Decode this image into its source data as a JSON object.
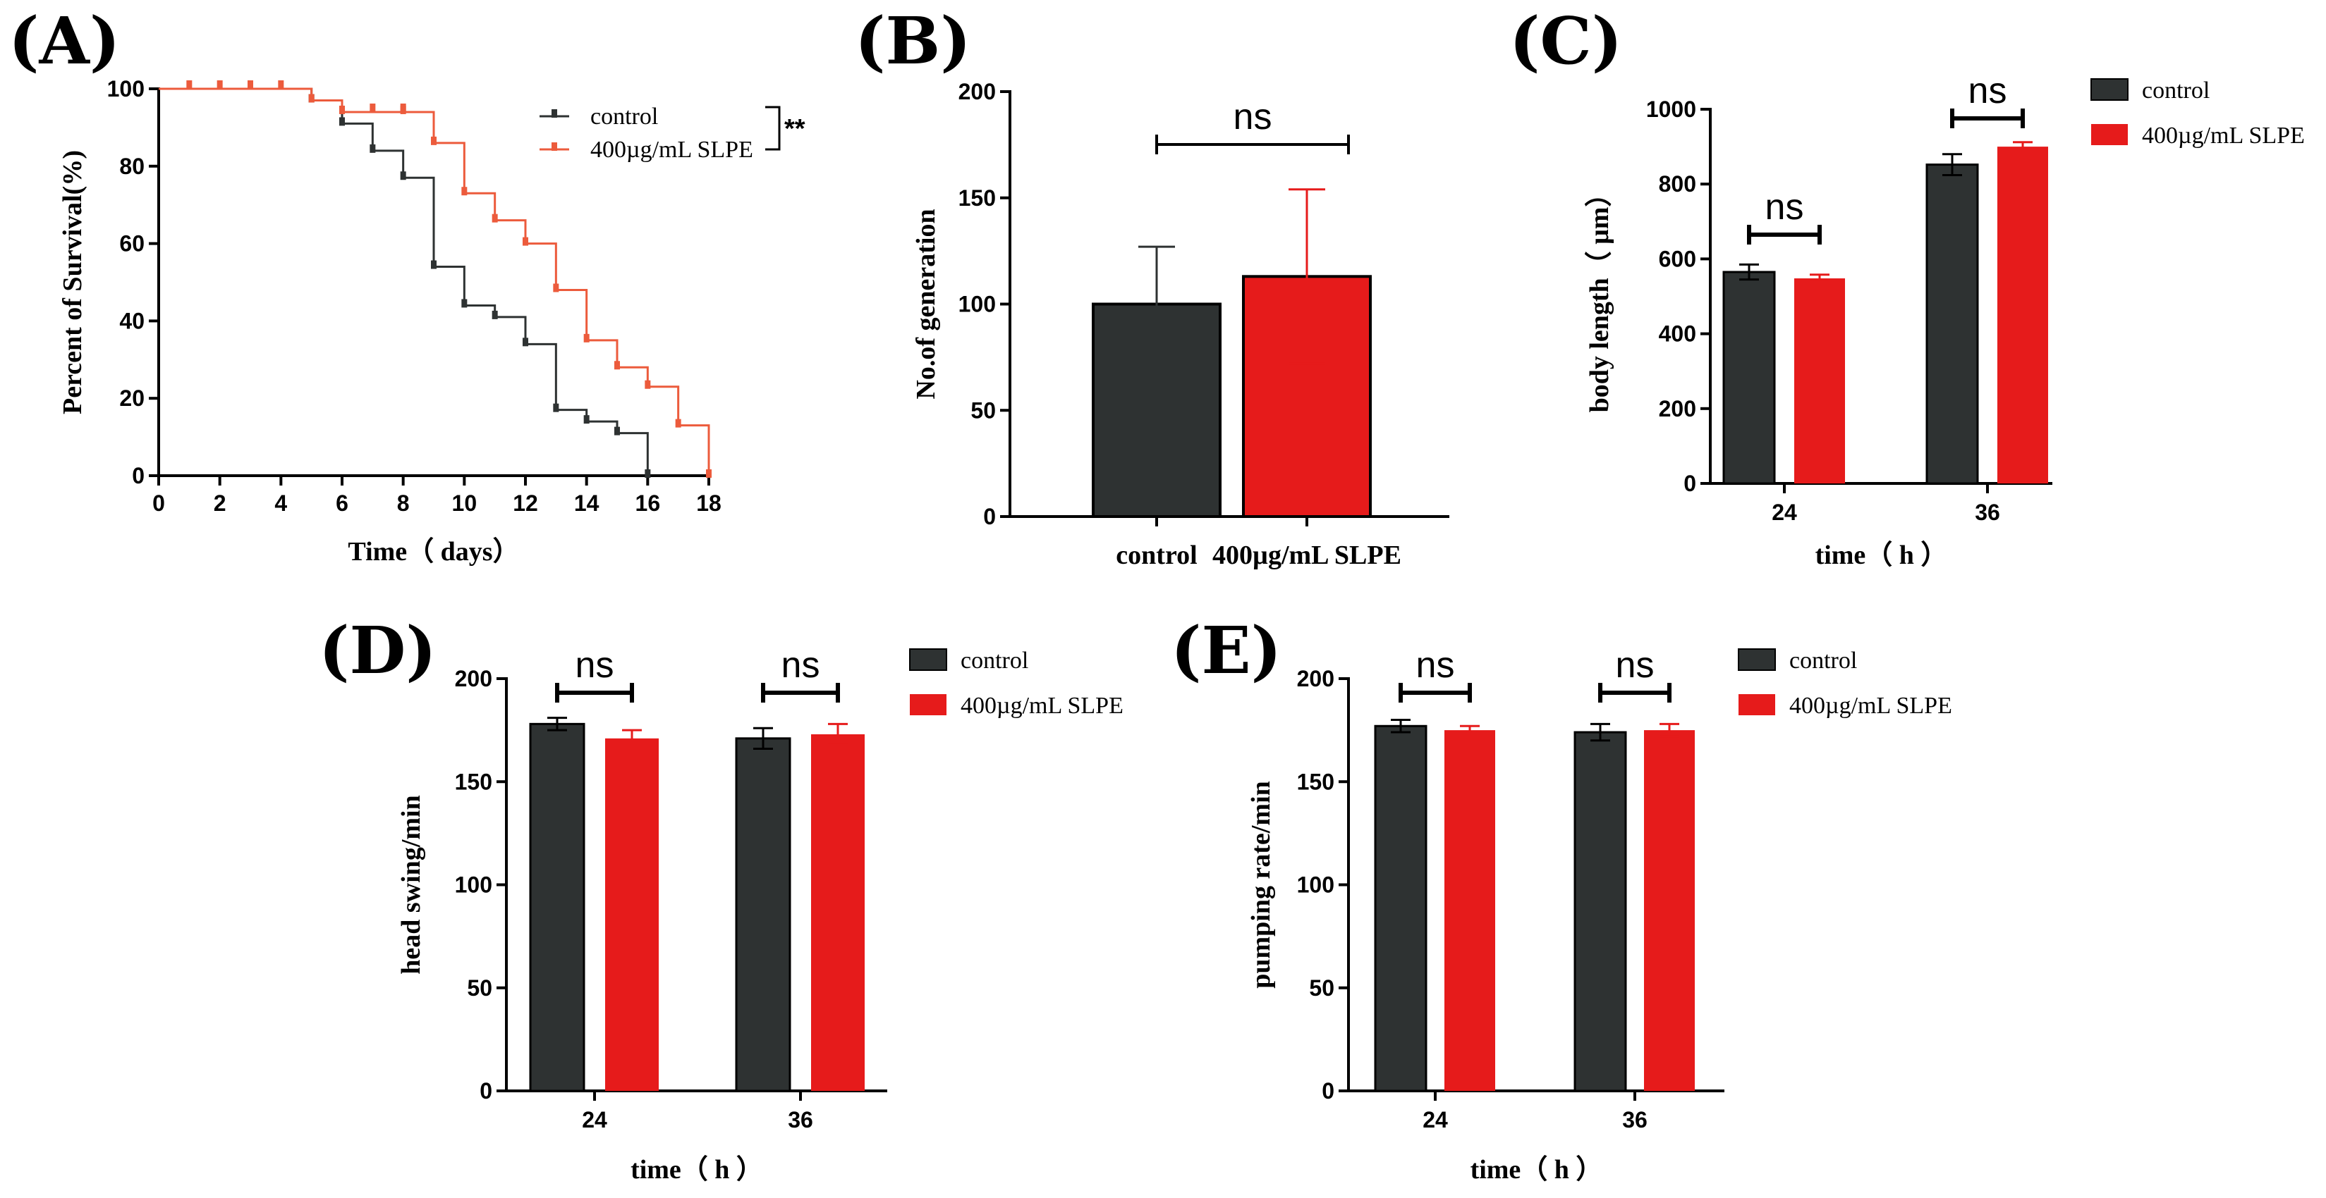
{
  "colors": {
    "control": "#2e3232",
    "slpe": "#e61b1b",
    "slpe_line": "#ec5b3c",
    "axis": "#000000"
  },
  "chart_data": [
    {
      "panel": "(A)",
      "type": "line",
      "subtype": "survival-step",
      "xlabel": "Time（ days）",
      "ylabel": "Percent of Survival(%)",
      "xlim": [
        0,
        18
      ],
      "ylim": [
        0,
        100
      ],
      "xticks": [
        "0",
        "2",
        "4",
        "6",
        "8",
        "10",
        "12",
        "14",
        "16",
        "18"
      ],
      "yticks": [
        "0",
        "20",
        "40",
        "60",
        "80",
        "100"
      ],
      "significance": "**",
      "series": [
        {
          "name": "control",
          "color_key": "control",
          "x": [
            0,
            5,
            6,
            7,
            8,
            9,
            10,
            11,
            12,
            13,
            14,
            15,
            16
          ],
          "y": [
            100,
            97,
            91,
            84,
            77,
            54,
            44,
            41,
            34,
            17,
            14,
            11,
            0
          ]
        },
        {
          "name": "400µg/mL SLPE",
          "color_key": "slpe_line",
          "x": [
            0,
            5,
            6,
            8,
            9,
            10,
            11,
            12,
            13,
            14,
            15,
            16,
            17,
            18
          ],
          "y": [
            100,
            97,
            94,
            94,
            86,
            73,
            66,
            60,
            48,
            35,
            28,
            23,
            13,
            0
          ]
        }
      ],
      "censor_marks": [
        {
          "series": 1,
          "x": [
            1,
            2,
            3,
            4,
            7,
            8
          ]
        }
      ]
    },
    {
      "panel": "(B)",
      "type": "bar",
      "ylabel": "No.of generation",
      "categories": [
        "control",
        "400µg/mL SLPE"
      ],
      "values": [
        100,
        113
      ],
      "errors": [
        27,
        41
      ],
      "ylim": [
        0,
        200
      ],
      "yticks": [
        "0",
        "50",
        "100",
        "150",
        "200"
      ],
      "significance": "ns"
    },
    {
      "panel": "(C)",
      "type": "bar",
      "xlabel": "time（ h ）",
      "ylabel": "body length（ μm）",
      "categories": [
        "24",
        "36"
      ],
      "series": [
        {
          "name": "control",
          "values": [
            565,
            852
          ],
          "errors": [
            20,
            28
          ]
        },
        {
          "name": "400µg/mL SLPE",
          "values": [
            548,
            900
          ],
          "errors": [
            10,
            12
          ]
        }
      ],
      "ylim": [
        0,
        1000
      ],
      "yticks": [
        "0",
        "200",
        "400",
        "600",
        "800",
        "1000"
      ],
      "significance": [
        "ns",
        "ns"
      ]
    },
    {
      "panel": "(D)",
      "type": "bar",
      "xlabel": "time（ h ）",
      "ylabel": "head swing/min",
      "categories": [
        "24",
        "36"
      ],
      "series": [
        {
          "name": "control",
          "values": [
            178,
            171
          ],
          "errors": [
            3,
            5
          ]
        },
        {
          "name": "400µg/mL SLPE",
          "values": [
            171,
            173
          ],
          "errors": [
            4,
            5
          ]
        }
      ],
      "ylim": [
        0,
        200
      ],
      "yticks": [
        "0",
        "50",
        "100",
        "150",
        "200"
      ],
      "significance": [
        "ns",
        "ns"
      ]
    },
    {
      "panel": "(E)",
      "type": "bar",
      "xlabel": "time（ h ）",
      "ylabel": "pumping rate/min",
      "categories": [
        "24",
        "36"
      ],
      "series": [
        {
          "name": "control",
          "values": [
            177,
            174
          ],
          "errors": [
            3,
            4
          ]
        },
        {
          "name": "400µg/mL SLPE",
          "values": [
            175,
            175
          ],
          "errors": [
            2,
            3
          ]
        }
      ],
      "ylim": [
        0,
        200
      ],
      "yticks": [
        "0",
        "50",
        "100",
        "150",
        "200"
      ],
      "significance": [
        "ns",
        "ns"
      ]
    }
  ]
}
